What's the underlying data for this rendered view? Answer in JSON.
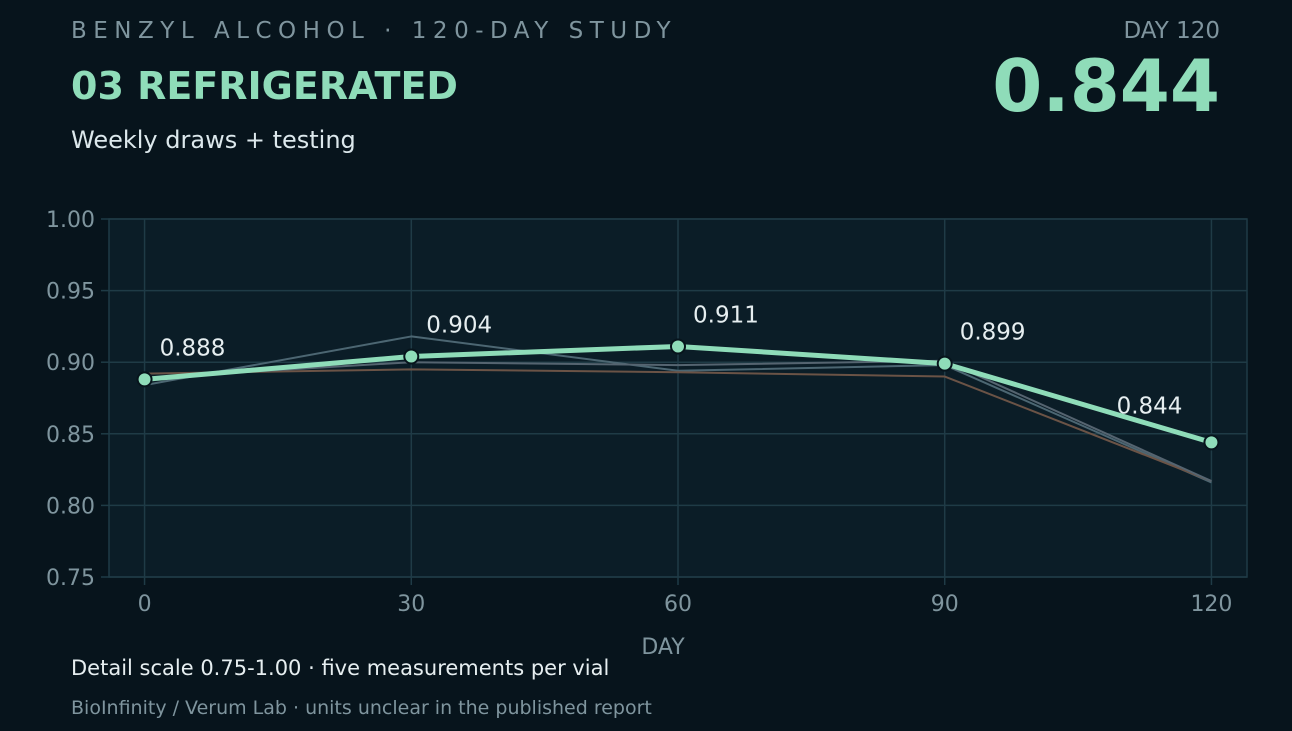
{
  "header": {
    "kicker": "BENZYL ALCOHOL · 120-DAY STUDY",
    "title": "03 REFRIGERATED",
    "subtitle": "Weekly draws + testing",
    "day_label": "DAY 120",
    "day_value": "0.844"
  },
  "footer": {
    "note": "Detail scale 0.75-1.00  ·  five measurements per vial",
    "source": "BioInfinity / Verum Lab  ·  units unclear in the published report"
  },
  "colors": {
    "accent": "#8fdcb9",
    "background": "#07141c",
    "plot_bg": "#0b1d27",
    "grid": "#1f3b46",
    "muted_series_1": "#4c6672",
    "muted_series_2": "#6b5346",
    "muted_series_3": "#556470"
  },
  "chart_data": {
    "type": "line",
    "xlabel": "DAY",
    "ylabel": "",
    "x": [
      0,
      30,
      60,
      90,
      120
    ],
    "xlim": [
      -4,
      124
    ],
    "ylim": [
      0.75,
      1.0
    ],
    "xticks": [
      "0",
      "30",
      "60",
      "90",
      "120"
    ],
    "yticks": [
      "0.75",
      "0.80",
      "0.85",
      "0.90",
      "0.95",
      "1.00"
    ],
    "grid": true,
    "series": [
      {
        "values": [
          0.888,
          0.904,
          0.911,
          0.899,
          0.844
        ],
        "labels": [
          "0.888",
          "0.904",
          "0.911",
          "0.899",
          "0.844"
        ],
        "highlight": true
      },
      {
        "values": [
          0.884,
          0.918,
          0.894,
          0.898,
          0.816
        ],
        "highlight": false
      },
      {
        "values": [
          0.892,
          0.895,
          0.893,
          0.89,
          0.817
        ],
        "highlight": false
      },
      {
        "values": [
          0.889,
          0.9,
          0.898,
          0.901,
          0.817
        ],
        "highlight": false
      }
    ]
  }
}
